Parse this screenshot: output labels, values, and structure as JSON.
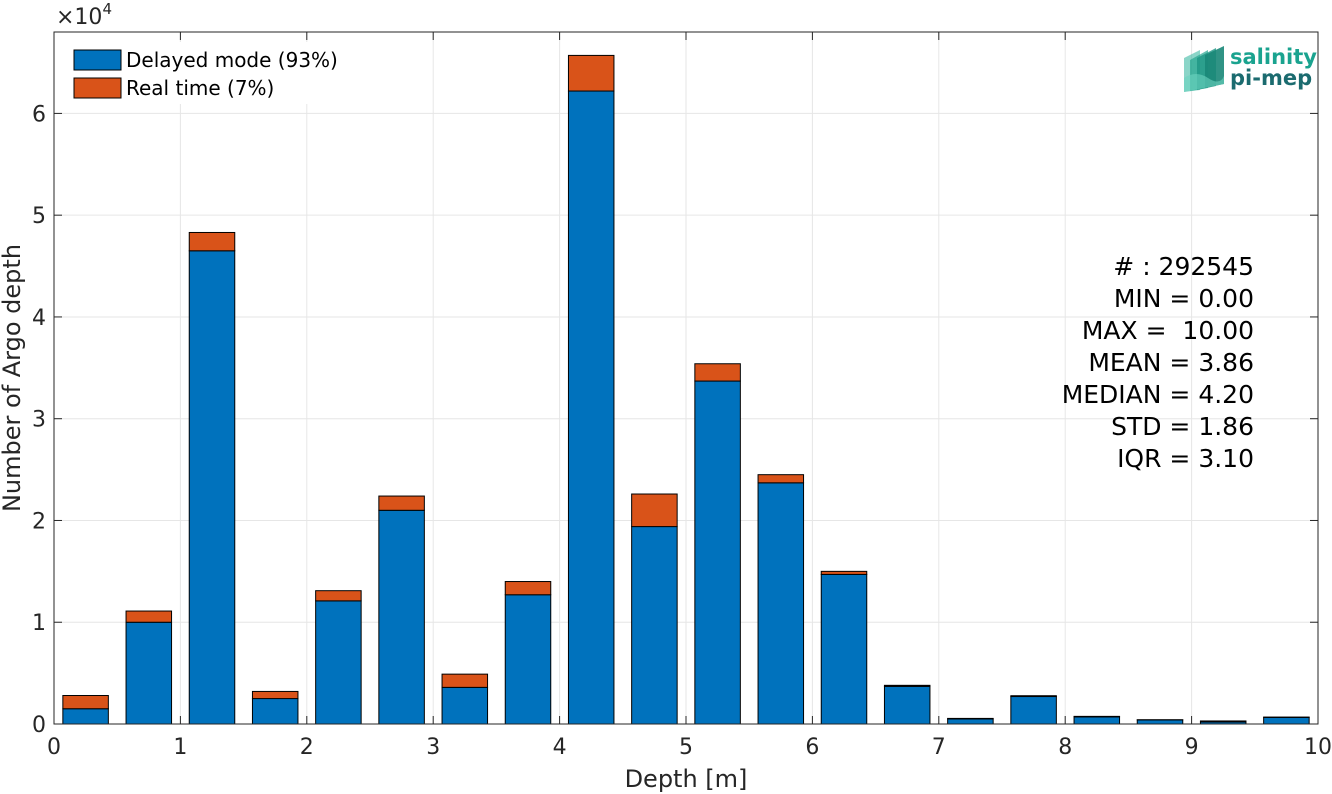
{
  "chart_data": {
    "type": "bar",
    "stacked": true,
    "xlabel": "Depth [m]",
    "ylabel": "Number of Argo depth",
    "exponent_label": "×10",
    "exponent_power": "4",
    "xlim": [
      0,
      10
    ],
    "ylim": [
      0,
      68000
    ],
    "xticks": [
      "0",
      "1",
      "2",
      "3",
      "4",
      "5",
      "6",
      "7",
      "8",
      "9",
      "10"
    ],
    "yticks": [
      "0",
      "1",
      "2",
      "3",
      "4",
      "5",
      "6"
    ],
    "grid": true,
    "legend_position": "top-left",
    "x": [
      0.25,
      0.75,
      1.25,
      1.75,
      2.25,
      2.75,
      3.25,
      3.75,
      4.25,
      4.75,
      5.25,
      5.75,
      6.25,
      6.75,
      7.25,
      7.75,
      8.25,
      8.75,
      9.25,
      9.75
    ],
    "series": [
      {
        "name": "Delayed mode (93%)",
        "color": "#0072BD",
        "values": [
          1500,
          10000,
          46500,
          2500,
          12100,
          21000,
          3600,
          12700,
          62200,
          19400,
          33700,
          23700,
          14700,
          3700,
          500,
          2700,
          700,
          400,
          200,
          650
        ]
      },
      {
        "name": "Real time (7%)",
        "color": "#D95319",
        "values": [
          1300,
          1100,
          1800,
          700,
          1000,
          1400,
          1300,
          1300,
          3500,
          3200,
          1700,
          800,
          300,
          100,
          50,
          80,
          50,
          20,
          100,
          30
        ]
      }
    ]
  },
  "stats": [
    "# : 292545",
    "MIN = 0.00",
    "MAX =  10.00",
    "MEAN = 3.86",
    "MEDIAN = 4.20",
    "STD = 1.86",
    "IQR = 3.10"
  ],
  "logo": {
    "line1": "salinity",
    "line2": "pi-mep",
    "color1": "#1aa38f",
    "color2": "#1b6b6f"
  }
}
